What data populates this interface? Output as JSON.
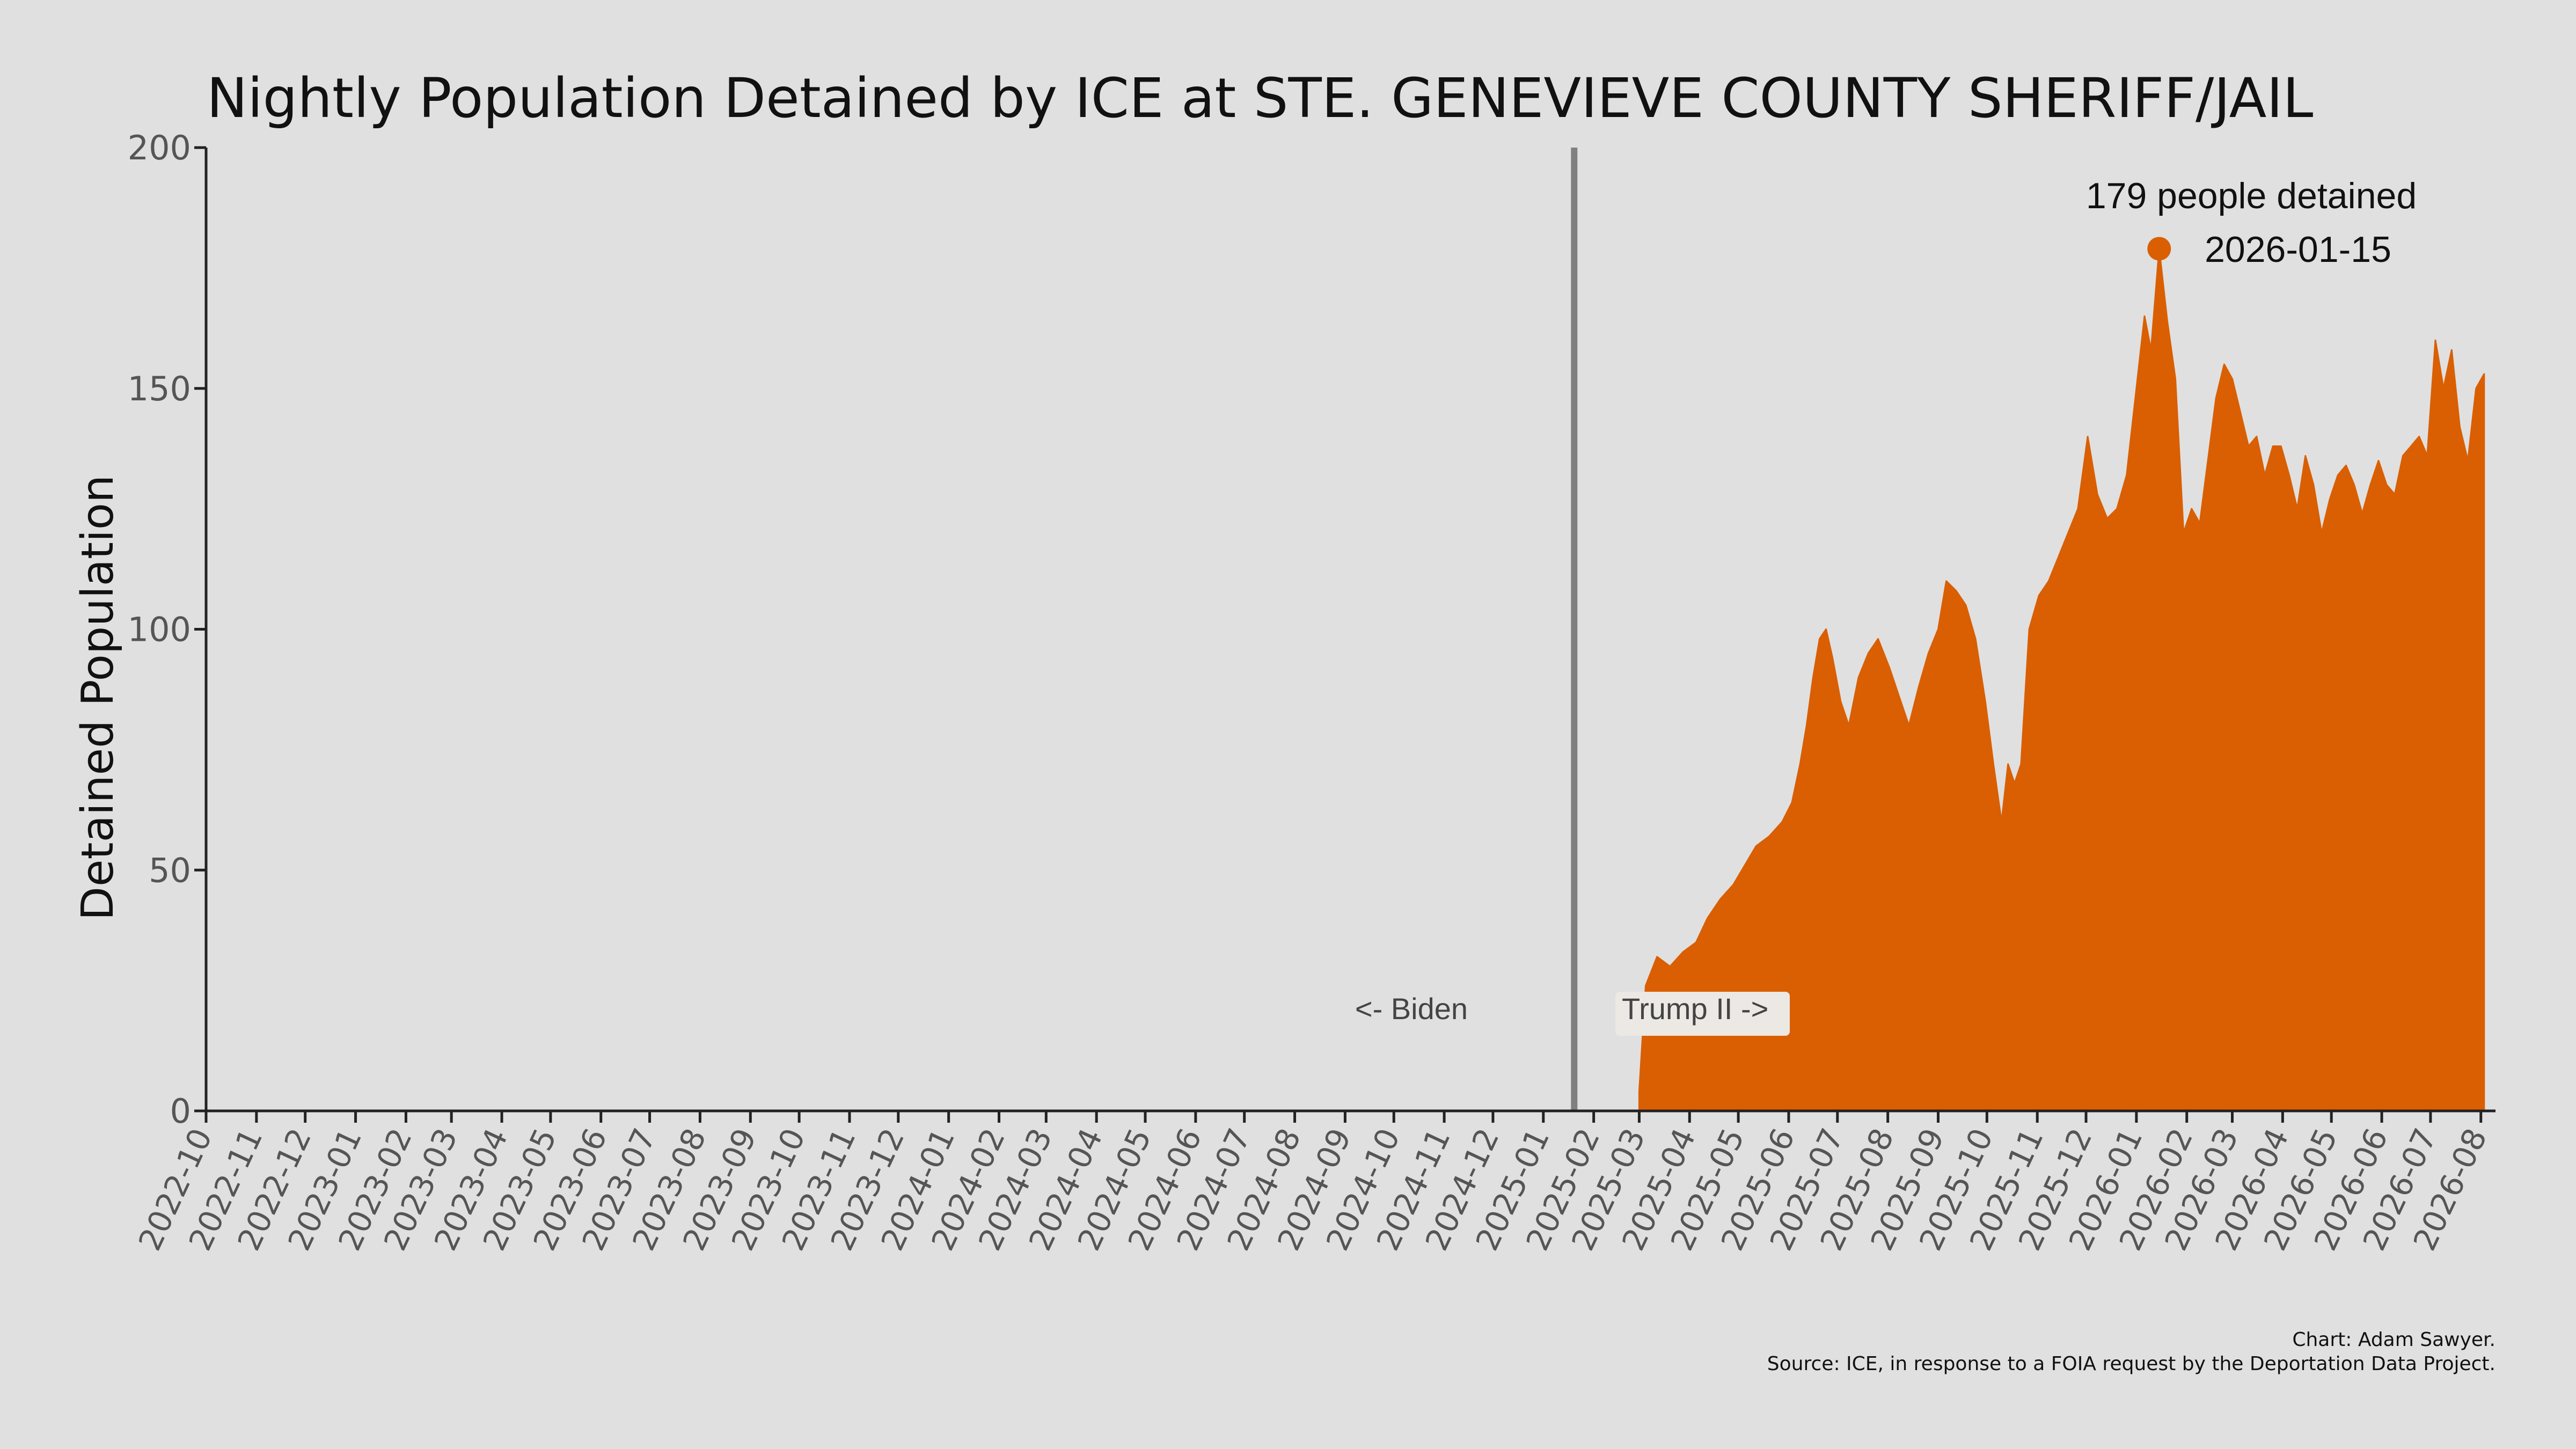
{
  "chart_data": {
    "type": "area",
    "title": "Nightly Population Detained by ICE at STE. GENEVIEVE COUNTY SHERIFF/JAIL",
    "xlabel": "",
    "ylabel": "Detained Population",
    "ylim": [
      0,
      200
    ],
    "yticks": [
      0,
      50,
      100,
      150,
      200
    ],
    "xlim": [
      "2022-10-01",
      "2026-08-10"
    ],
    "xtick_labels": [
      "2022-10",
      "2022-11",
      "2022-12",
      "2023-01",
      "2023-02",
      "2023-03",
      "2023-04",
      "2023-05",
      "2023-06",
      "2023-07",
      "2023-08",
      "2023-09",
      "2023-10",
      "2023-11",
      "2023-12",
      "2024-01",
      "2024-02",
      "2024-03",
      "2024-04",
      "2024-05",
      "2024-06",
      "2024-07",
      "2024-08",
      "2024-09",
      "2024-10",
      "2024-11",
      "2024-12",
      "2025-01",
      "2025-02",
      "2025-03",
      "2025-04",
      "2025-05",
      "2025-06",
      "2025-07",
      "2025-08",
      "2025-09",
      "2025-10",
      "2025-11",
      "2025-12",
      "2026-01",
      "2026-02",
      "2026-03",
      "2026-04",
      "2026-05",
      "2026-06",
      "2026-07",
      "2026-08"
    ],
    "grid": false,
    "fill_color": "#d95f02",
    "divider": {
      "date": "2025-01-20",
      "color": "#808080"
    },
    "biden_label": "<- Biden",
    "trump_label": "Trump II ->",
    "peak": {
      "date": "2026-01-15",
      "value": 179,
      "text": "179 people detained",
      "date_label": "2026-01-15"
    },
    "series": [
      {
        "x": [
          "2025-03-01",
          "2025-03-05",
          "2025-03-12",
          "2025-03-20",
          "2025-03-28",
          "2025-04-05",
          "2025-04-12",
          "2025-04-20",
          "2025-04-28",
          "2025-05-05",
          "2025-05-12",
          "2025-05-20",
          "2025-05-28",
          "2025-06-03",
          "2025-06-08",
          "2025-06-12",
          "2025-06-16",
          "2025-06-20",
          "2025-06-24",
          "2025-06-28",
          "2025-07-03",
          "2025-07-08",
          "2025-07-14",
          "2025-07-20",
          "2025-07-26",
          "2025-08-02",
          "2025-08-08",
          "2025-08-14",
          "2025-08-20",
          "2025-08-26",
          "2025-09-01",
          "2025-09-06",
          "2025-09-12",
          "2025-09-18",
          "2025-09-24",
          "2025-09-30",
          "2025-10-05",
          "2025-10-10",
          "2025-10-14",
          "2025-10-18",
          "2025-10-22",
          "2025-10-27",
          "2025-11-02",
          "2025-11-08",
          "2025-11-14",
          "2025-11-20",
          "2025-11-26",
          "2025-12-02",
          "2025-12-08",
          "2025-12-14",
          "2025-12-20",
          "2025-12-26",
          "2026-01-01",
          "2026-01-06",
          "2026-01-10",
          "2026-01-15",
          "2026-01-20",
          "2026-01-25",
          "2026-01-30",
          "2026-02-04",
          "2026-02-09",
          "2026-02-14",
          "2026-02-19",
          "2026-02-24",
          "2026-03-01",
          "2026-03-06",
          "2026-03-11",
          "2026-03-16",
          "2026-03-21",
          "2026-03-26",
          "2026-03-31",
          "2026-04-05",
          "2026-04-10",
          "2026-04-15",
          "2026-04-20",
          "2026-04-25",
          "2026-04-30",
          "2026-05-05",
          "2026-05-10",
          "2026-05-15",
          "2026-05-20",
          "2026-05-25",
          "2026-05-30",
          "2026-06-04",
          "2026-06-09",
          "2026-06-14",
          "2026-06-19",
          "2026-06-24",
          "2026-06-29",
          "2026-07-04",
          "2026-07-09",
          "2026-07-14",
          "2026-07-19",
          "2026-07-24",
          "2026-07-29",
          "2026-08-03"
        ],
        "y": [
          4,
          26,
          32,
          30,
          33,
          35,
          40,
          44,
          47,
          51,
          55,
          57,
          60,
          64,
          72,
          80,
          90,
          98,
          100,
          94,
          85,
          80,
          90,
          95,
          98,
          92,
          86,
          80,
          88,
          95,
          100,
          110,
          108,
          105,
          98,
          85,
          72,
          60,
          72,
          68,
          72,
          100,
          107,
          110,
          115,
          120,
          125,
          140,
          128,
          123,
          125,
          132,
          150,
          165,
          158,
          179,
          164,
          152,
          120,
          125,
          122,
          135,
          148,
          155,
          152,
          145,
          138,
          140,
          132,
          138,
          138,
          132,
          125,
          136,
          130,
          120,
          127,
          132,
          134,
          130,
          124,
          130,
          135,
          130,
          128,
          136,
          138,
          140,
          136,
          160,
          150,
          158,
          142,
          135,
          150,
          153
        ]
      }
    ],
    "credit": "Chart: Adam Sawyer.",
    "source": "Source: ICE, in response to a FOIA request by the Deportation Data Project."
  }
}
